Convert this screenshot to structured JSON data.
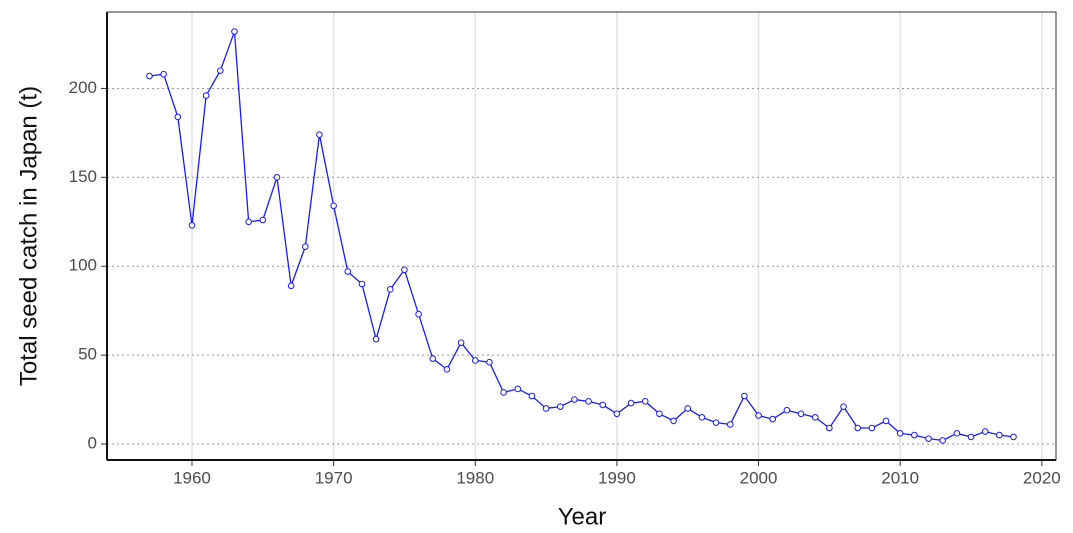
{
  "chart_data": {
    "type": "line",
    "x_label": "Year",
    "y_label": "Total seed catch in Japan (t)",
    "x": [
      1957,
      1958,
      1959,
      1960,
      1961,
      1962,
      1963,
      1964,
      1965,
      1966,
      1967,
      1968,
      1969,
      1970,
      1971,
      1972,
      1973,
      1974,
      1975,
      1976,
      1977,
      1978,
      1979,
      1980,
      1981,
      1982,
      1983,
      1984,
      1985,
      1986,
      1987,
      1988,
      1989,
      1990,
      1991,
      1992,
      1993,
      1994,
      1995,
      1996,
      1997,
      1998,
      1999,
      2000,
      2001,
      2002,
      2003,
      2004,
      2005,
      2006,
      2007,
      2008,
      2009,
      2010,
      2011,
      2012,
      2013,
      2014,
      2015,
      2016,
      2017,
      2018
    ],
    "series": [
      {
        "name": "seed catch",
        "color": "#1a1aff",
        "values": [
          207,
          208,
          184,
          123,
          196,
          210,
          232,
          125,
          126,
          150,
          89,
          111,
          174,
          134,
          97,
          90,
          59,
          87,
          98,
          73,
          48,
          42,
          57,
          47,
          46,
          29,
          31,
          27,
          20,
          21,
          25,
          24,
          22,
          17,
          23,
          24,
          17,
          13,
          20,
          15,
          12,
          11,
          27,
          16,
          14,
          19,
          17,
          15,
          9,
          21,
          9,
          9,
          13,
          6,
          5,
          3,
          2,
          6,
          4,
          7,
          5,
          4
        ]
      }
    ],
    "xlim": [
      1954,
      2021
    ],
    "xticks": [
      1960,
      1970,
      1980,
      1990,
      2000,
      2010,
      2020
    ],
    "ylim": [
      -9,
      243
    ],
    "yticks": [
      0,
      50,
      100,
      150,
      200
    ],
    "grid": true
  }
}
